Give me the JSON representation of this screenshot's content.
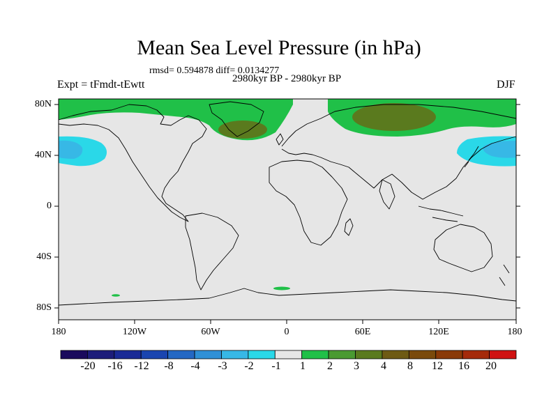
{
  "title": "Mean Sea Level Pressure (in hPa)",
  "stats": "rmsd= 0.594878 diff= 0.0134277",
  "period": "2980kyr BP - 2980kyr BP",
  "experiment": "Expt = tFmdt-tEwtt",
  "season": "DJF",
  "lat_labels": [
    "80N",
    "40N",
    "0",
    "40S",
    "80S"
  ],
  "lon_labels": [
    "180",
    "120W",
    "60W",
    "0",
    "60E",
    "120E",
    "180"
  ],
  "colorbar": {
    "colors": [
      "#1a0a5c",
      "#1d1d7a",
      "#1a2a96",
      "#1a45b0",
      "#2468c4",
      "#2f90d6",
      "#37b8e6",
      "#2ad8e8",
      "#e6e6e6",
      "#20c048",
      "#4a9a32",
      "#5a7a1e",
      "#6e5a14",
      "#7a4a0c",
      "#8a3a08",
      "#a52a0a",
      "#d01212"
    ],
    "labels": [
      "-20",
      "-16",
      "-12",
      "-8",
      "-4",
      "-3",
      "-2",
      "-1",
      "1",
      "2",
      "3",
      "4",
      "8",
      "12",
      "16",
      "20"
    ]
  },
  "colors": {
    "neutral": "#e6e6e6",
    "positive_1_2": "#20c048",
    "positive_3_4": "#5a7a1e",
    "negative_2_1": "#2ad8e8",
    "negative_3_2": "#37b8e6"
  }
}
